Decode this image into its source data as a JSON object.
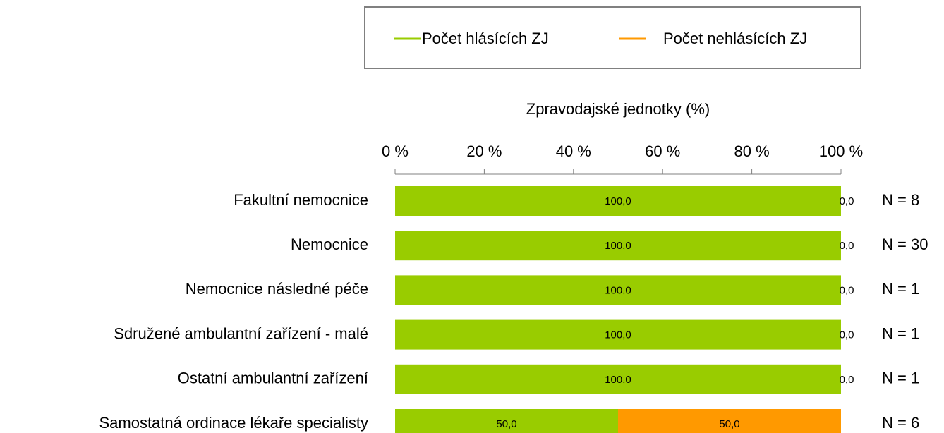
{
  "chart_data": {
    "type": "stacked_barh",
    "axis_label": "Zpravodajské jednotky (%)",
    "categories": [
      "Fakultní nemocnice",
      "Nemocnice",
      "Nemocnice následné péče",
      "Sdružené ambulantní zařízení - malé",
      "Ostatní ambulantní zařízení",
      "Samostatná ordinace lékaře specialisty"
    ],
    "series": [
      {
        "name": "Počet hlásících ZJ",
        "color": "#99cc00",
        "values": [
          100,
          100,
          100,
          100,
          100,
          50
        ],
        "value_labels": [
          "100,0",
          "100,0",
          "100,0",
          "100,0",
          "100,0",
          "50,0"
        ]
      },
      {
        "name": "Počet nehlásících ZJ",
        "color": "#ff9900",
        "values": [
          0,
          0,
          0,
          0,
          0,
          50
        ],
        "value_labels": [
          "0,0",
          "0,0",
          "0,0",
          "0,0",
          "0,0",
          "50,0"
        ]
      }
    ],
    "annotations": [
      "N = 8",
      "N = 30",
      "N = 1",
      "N = 1",
      "N = 1",
      "N = 6"
    ],
    "xlim": [
      0,
      100
    ],
    "xticks": [
      {
        "value": 0,
        "label": "0 %"
      },
      {
        "value": 20,
        "label": "20 %"
      },
      {
        "value": 40,
        "label": "40 %"
      },
      {
        "value": 60,
        "label": "60 %"
      },
      {
        "value": 80,
        "label": "80 %"
      },
      {
        "value": 100,
        "label": "100 %"
      }
    ],
    "legend": "top"
  }
}
